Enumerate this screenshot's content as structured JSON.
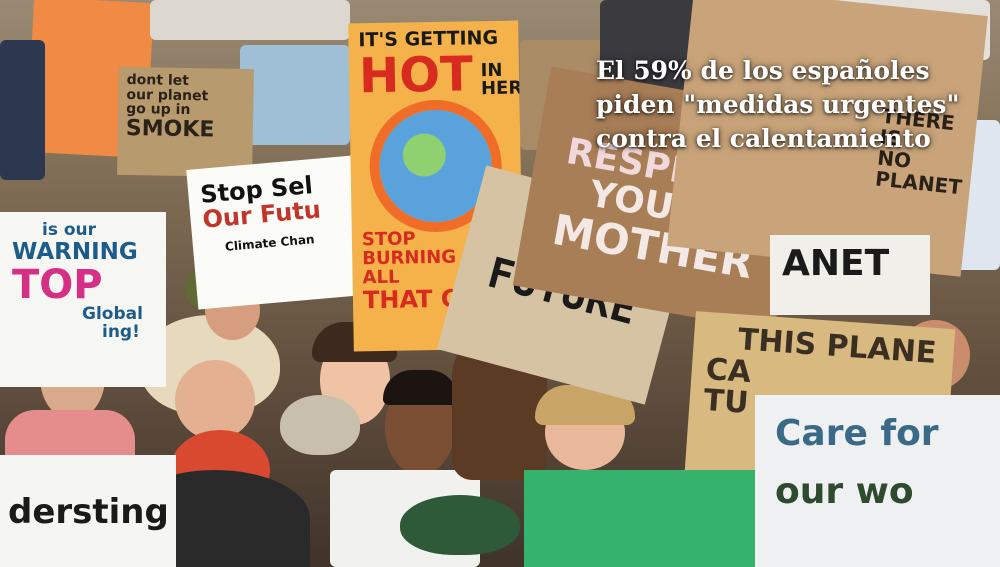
{
  "headline": {
    "line1": "El 59% de los españoles",
    "line2": "piden \"medidas urgentes\"",
    "line3": "contra el calentamiento"
  },
  "signs": {
    "hot": {
      "l1": "IT'S GETTING",
      "l2": "HOT",
      "l3": "IN HERE",
      "l4": "STOP BURNING",
      "l5": "ALL",
      "l6": "THAT CO"
    },
    "stop": {
      "l1": "Stop Sel",
      "l2": "Our Futu",
      "l3": "Climate Chan"
    },
    "warning": {
      "l1": "is our",
      "l2": "WARNING",
      "l3": "TOP",
      "l4": "Global",
      "l5": "ing!"
    },
    "planet_left": {
      "l1": "dont let",
      "l2": "our planet",
      "l3": "go up in",
      "l4": "SMOKE"
    },
    "respect": {
      "l1": "RESPECT",
      "l2": "YOUR",
      "l3": "MOTHER"
    },
    "future": {
      "l1": "FUTURE"
    },
    "there_is": {
      "l1": "THERE IS",
      "l2": "NO",
      "l3": "PLANET"
    },
    "planet_mid": {
      "l1": "ANET"
    },
    "this_planet": {
      "l1": "THIS PLANE",
      "l2": "CA",
      "l3": "TU"
    },
    "care_for": {
      "l1": "Care for",
      "l2": "our wo"
    },
    "standing": {
      "l1": "dersting"
    }
  },
  "colors": {
    "caption": "#ffffff",
    "hot_sign": "#f5b24a",
    "cardboard": "#b58a5c"
  }
}
